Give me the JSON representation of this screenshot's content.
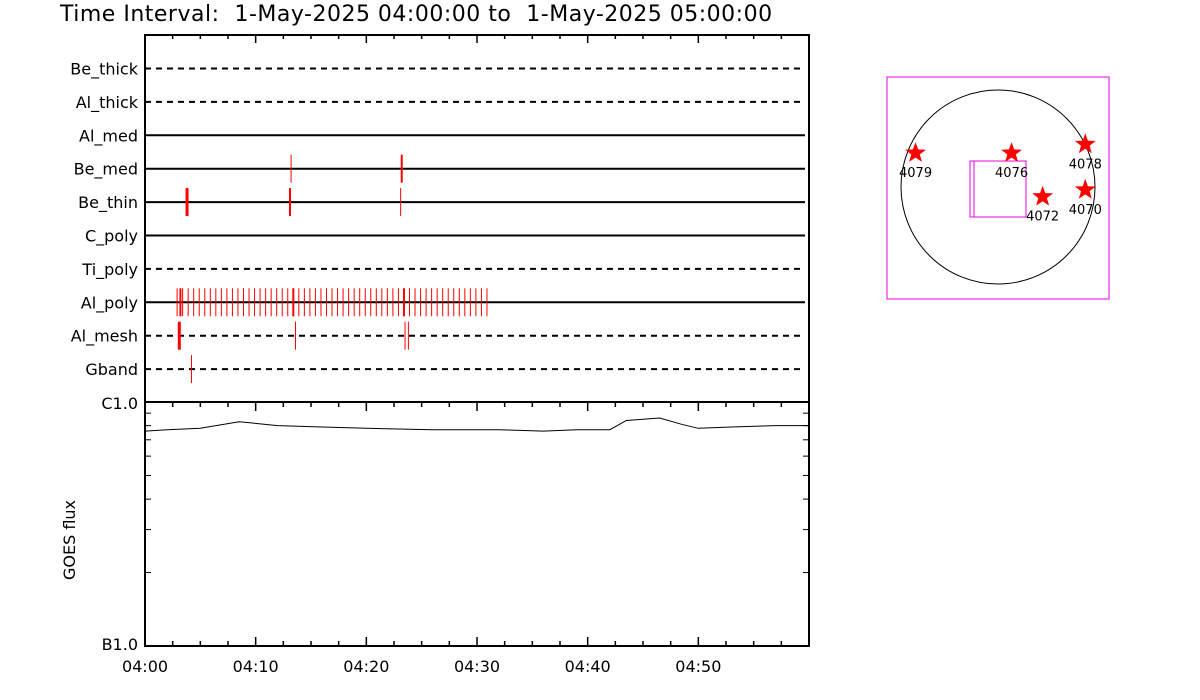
{
  "title": "Time Interval:  1-May-2025 04:00:00 to  1-May-2025 05:00:00",
  "chart_data": [
    {
      "type": "scatter",
      "panel": "detector-timeline",
      "x_unit": "minutes after 04:00",
      "channels": [
        {
          "name": "Be_thick",
          "line": "dashed",
          "events": []
        },
        {
          "name": "Al_thick",
          "line": "dashed",
          "events": []
        },
        {
          "name": "Al_med",
          "line": "solid",
          "events": []
        },
        {
          "name": "Be_med",
          "line": "solid",
          "events": [
            {
              "t": 13.2,
              "w": 1
            },
            {
              "t": 23.2,
              "w": 2
            }
          ]
        },
        {
          "name": "Be_thin",
          "line": "solid",
          "events": [
            {
              "t": 3.8,
              "w": 3
            },
            {
              "t": 13.1,
              "w": 2
            },
            {
              "t": 23.1,
              "w": 1
            }
          ]
        },
        {
          "name": "C_poly",
          "line": "solid",
          "events": []
        },
        {
          "name": "Ti_poly",
          "line": "dashed",
          "events": []
        },
        {
          "name": "Al_poly",
          "line": "solid",
          "events": "dense",
          "dense_range": [
            2.9,
            31.3
          ],
          "dense_step": 0.5
        },
        {
          "name": "Al_mesh",
          "line": "dashed",
          "events": [
            {
              "t": 3.1,
              "w": 3
            },
            {
              "t": 13.6,
              "w": 1
            },
            {
              "t": 23.5,
              "w": 1
            },
            {
              "t": 23.8,
              "w": 1
            }
          ]
        },
        {
          "name": "Gband",
          "line": "dashed",
          "events": [
            {
              "t": 4.2,
              "w": 1
            }
          ]
        }
      ],
      "event_color": "#ff0000"
    },
    {
      "type": "line",
      "panel": "goes-flux",
      "ylabel": "GOES flux",
      "ytick_labels": [
        "C1.0",
        "B1.0"
      ],
      "y_scale": "log",
      "ylim": [
        1e-07,
        1e-06
      ],
      "x_ticks": [
        "04:00",
        "04:10",
        "04:20",
        "04:30",
        "04:40",
        "04:50"
      ],
      "x_range_minutes": [
        0,
        60
      ],
      "series": [
        {
          "x": [
            0,
            2,
            5,
            8.5,
            12,
            16,
            20,
            26,
            32,
            36,
            39,
            42,
            43.5,
            45,
            46.5,
            48.5,
            50,
            53,
            57,
            60
          ],
          "y": [
            7.6e-07,
            7.7e-07,
            7.8e-07,
            8.3e-07,
            8e-07,
            7.9e-07,
            7.8e-07,
            7.7e-07,
            7.7e-07,
            7.6e-07,
            7.7e-07,
            7.7e-07,
            8.4e-07,
            8.5e-07,
            8.6e-07,
            8.1e-07,
            7.8e-07,
            7.9e-07,
            8e-07,
            8e-07
          ]
        }
      ],
      "line_color": "#000000"
    },
    {
      "type": "scatter",
      "panel": "solar-disk-map",
      "active_regions": [
        {
          "label": "4079",
          "x": -0.85,
          "y": 0.35
        },
        {
          "label": "4076",
          "x": 0.14,
          "y": 0.35
        },
        {
          "label": "4078",
          "x": 0.9,
          "y": 0.44
        },
        {
          "label": "4072",
          "x": 0.46,
          "y": -0.1
        },
        {
          "label": "4070",
          "x": 0.9,
          "y": -0.03
        }
      ],
      "marker_color": "#ff0000",
      "box_color": "#e800e8"
    }
  ]
}
